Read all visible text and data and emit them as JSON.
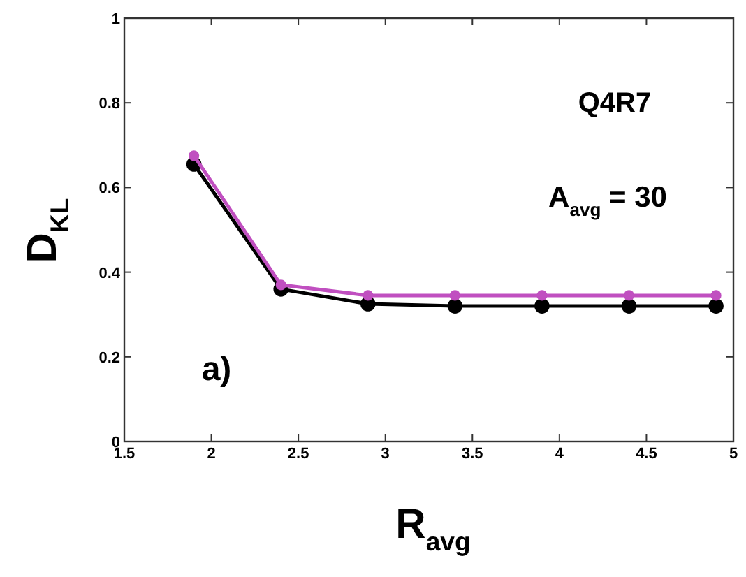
{
  "chart_data": {
    "type": "line",
    "xlabel": "R$_{avg}$",
    "ylabel": "D$_{KL}$",
    "annotations": [
      "Q4R7",
      "A$_{avg}$ = 30",
      "a)"
    ],
    "x": [
      1.9,
      2.4,
      2.9,
      3.4,
      3.9,
      4.4,
      4.9
    ],
    "series": [
      {
        "color": "#000000",
        "values": [
          0.655,
          0.36,
          0.325,
          0.32,
          0.32,
          0.32,
          0.32
        ]
      },
      {
        "color": "#c04fc0",
        "values": [
          0.675,
          0.37,
          0.345,
          0.345,
          0.345,
          0.345,
          0.345
        ]
      }
    ],
    "xlim": [
      1.5,
      5
    ],
    "xticks": [
      1.5,
      2,
      2.5,
      3,
      3.5,
      4,
      4.5,
      5
    ],
    "ylim": [
      0,
      1
    ],
    "yticks": [
      0,
      0.2,
      0.4,
      0.6,
      0.8,
      1
    ],
    "marker": "circle",
    "line_style": "solid",
    "grid": false
  }
}
